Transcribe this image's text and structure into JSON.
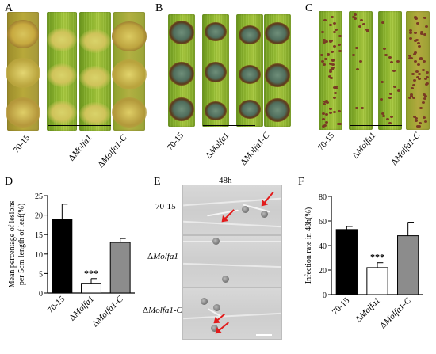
{
  "panels": {
    "A": {
      "letter": "A"
    },
    "B": {
      "letter": "B"
    },
    "C": {
      "letter": "C"
    },
    "D": {
      "letter": "D"
    },
    "E": {
      "letter": "E",
      "time_label": "48h"
    },
    "F": {
      "letter": "F"
    }
  },
  "genotypes": {
    "wt": "70-15",
    "mut_prefix": "Δ",
    "mut_name": "Molfa1",
    "comp_name": "Molfa1-C"
  },
  "chart_data": [
    {
      "type": "bar",
      "panel": "D",
      "categories": [
        "70-15",
        "ΔMolfa1",
        "ΔMolfa1-C"
      ],
      "values": [
        18.8,
        2.5,
        13.0
      ],
      "errors": [
        4.0,
        1.2,
        1.0
      ],
      "colors": [
        "#000000",
        "#ffffff",
        "#8c8c8c"
      ],
      "ylabel_line1": "Mean percentage of lesions",
      "ylabel_line2": "per 5cm length of leaf(%)",
      "ylim": [
        0,
        25
      ],
      "yticks": [
        "0",
        "5",
        "10",
        "15",
        "20",
        "25"
      ],
      "significance": "***",
      "significance_index": 1
    },
    {
      "type": "bar",
      "panel": "F",
      "categories": [
        "70-15",
        "ΔMolfa1",
        "ΔMolfa1-C"
      ],
      "values": [
        53,
        22,
        48
      ],
      "errors": [
        2.5,
        4,
        11
      ],
      "colors": [
        "#000000",
        "#ffffff",
        "#8c8c8c"
      ],
      "ylabel": "Infection rate in 48h(%)",
      "ylim": [
        0,
        80
      ],
      "yticks": [
        "0",
        "20",
        "40",
        "60",
        "80"
      ],
      "significance": "***",
      "significance_index": 1
    }
  ]
}
